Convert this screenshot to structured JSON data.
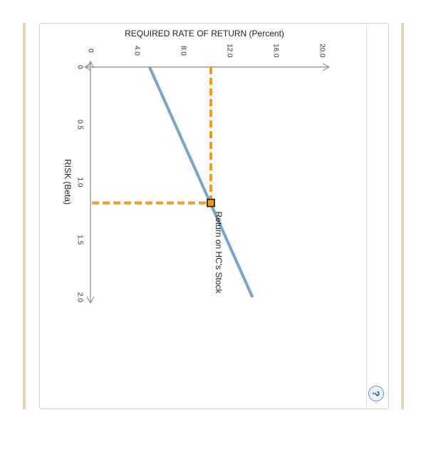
{
  "chart_data": {
    "type": "line",
    "title": "REQUIRED RATE OF RETURN (Percent)",
    "ylabel": "RISK (Beta)",
    "x_ticks": [
      "0",
      "4.0",
      "8.0",
      "12.0",
      "16.0",
      "20.0"
    ],
    "y_ticks": [
      "0",
      "0.5",
      "1.0",
      "1.5",
      "2.0"
    ],
    "xlim": [
      0,
      20
    ],
    "ylim": [
      0,
      2
    ],
    "orientation": "rotated-90-clockwise",
    "series": [
      {
        "name": "Return on HC's Stock",
        "points": [
          {
            "x": 5.1,
            "y": 0
          },
          {
            "x": 14.0,
            "y": 2.0
          }
        ],
        "color": "#7ba3cb"
      }
    ],
    "reference_point": {
      "x": 10.4,
      "y": 1.18,
      "color": "#f59c1a"
    }
  },
  "help": {
    "label": "?"
  }
}
